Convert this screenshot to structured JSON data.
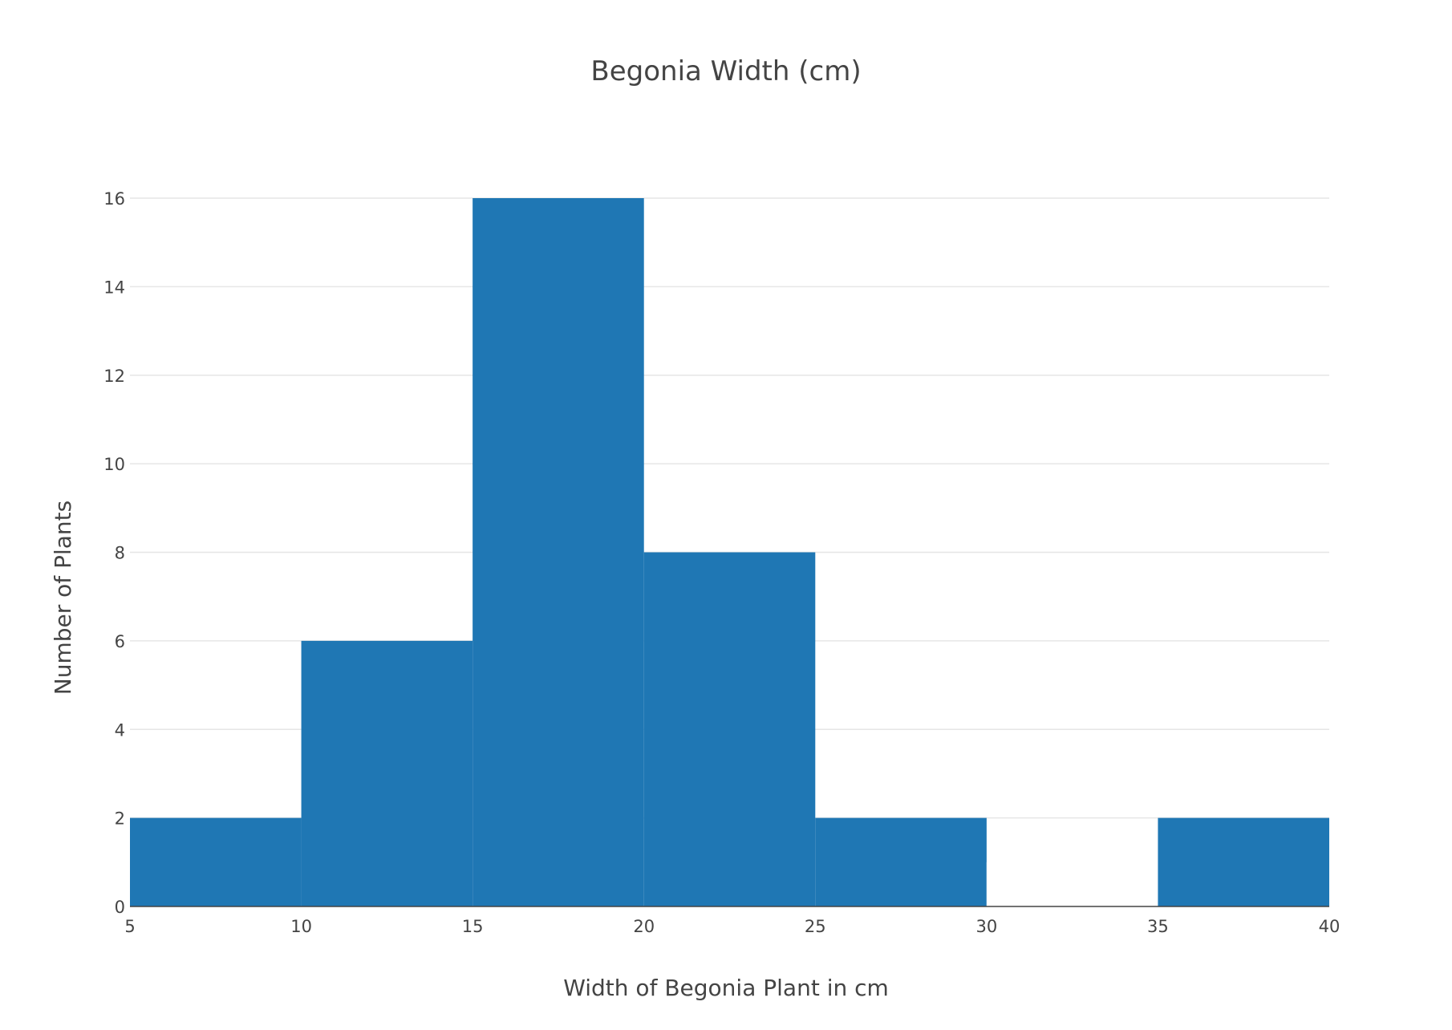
{
  "chart_data": {
    "type": "bar",
    "title": "Begonia Width (cm)",
    "xlabel": "Width of Begonia Plant in cm",
    "ylabel": "Number of Plants",
    "bins": [
      {
        "start": 5,
        "end": 10,
        "count": 2
      },
      {
        "start": 10,
        "end": 15,
        "count": 6
      },
      {
        "start": 15,
        "end": 20,
        "count": 16
      },
      {
        "start": 20,
        "end": 25,
        "count": 8
      },
      {
        "start": 25,
        "end": 30,
        "count": 2
      },
      {
        "start": 30,
        "end": 35,
        "count": 1
      },
      {
        "start": 35,
        "end": 40,
        "count": 2
      }
    ],
    "xlim": [
      5,
      40
    ],
    "ylim": [
      0,
      16
    ],
    "x_ticks": [
      5,
      10,
      15,
      20,
      25,
      30,
      35,
      40
    ],
    "y_ticks": [
      0,
      2,
      4,
      6,
      8,
      10,
      12,
      14,
      16
    ],
    "grid": "horizontal",
    "bar_color": "#1f77b4",
    "hidden_bins": [
      5
    ]
  }
}
